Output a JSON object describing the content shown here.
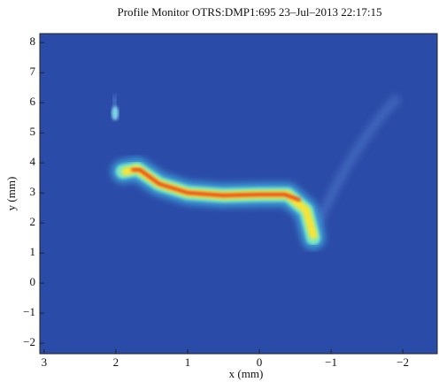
{
  "chart_data": {
    "type": "image",
    "title": "Profile Monitor OTRS:DMP1:695 23–Jul–2013 22:17:15",
    "x_label": "x (mm)",
    "y_label": "y (mm)",
    "xlim": [
      3.06,
      -2.48
    ],
    "ylim": [
      -2.35,
      8.3
    ],
    "xticks": [
      3,
      2,
      1,
      0,
      {
        "value": -1,
        "label": "−1"
      },
      {
        "value": -2,
        "label": "−2"
      }
    ],
    "yticks": [
      {
        "value": -2,
        "label": "−2"
      },
      {
        "value": -1,
        "label": "−1"
      },
      0,
      1,
      2,
      3,
      4,
      5,
      6,
      7,
      8
    ]
  }
}
